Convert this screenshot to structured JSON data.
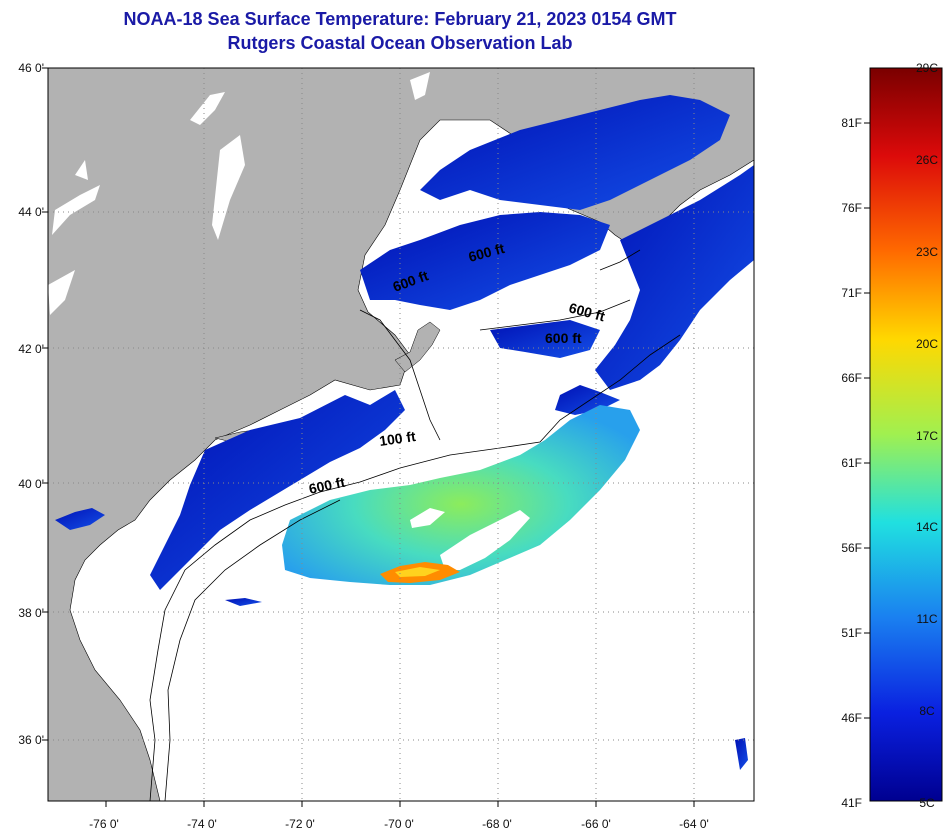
{
  "title": "NOAA-18 Sea Surface Temperature:  February 21, 2023 0154 GMT",
  "subtitle": "Rutgers Coastal Ocean Observation Lab",
  "latitude_labels": [
    "46 0'",
    "44 0'",
    "42 0'",
    "40 0'",
    "38 0'",
    "36 0'"
  ],
  "longitude_labels": [
    "-76 0'",
    "-74 0'",
    "-72 0'",
    "-70 0'",
    "-68 0'",
    "-66 0'",
    "-64 0'"
  ],
  "depth_contour_labels": [
    "600 ft",
    "600 ft",
    "600 ft",
    "600 ft",
    "100 ft",
    "600 ft"
  ],
  "colorbar": {
    "fahrenheit_labels": [
      "81F",
      "76F",
      "71F",
      "66F",
      "61F",
      "56F",
      "51F",
      "46F",
      "41F"
    ],
    "celsius_labels": [
      "29C",
      "26C",
      "23C",
      "20C",
      "17C",
      "14C",
      "11C",
      "8C",
      "5C"
    ]
  },
  "colors": {
    "title": "#1a1aa6",
    "land": "#b2b2b2",
    "cloud": "#ffffff",
    "cold_water": "#0a1ec8",
    "warm_water": "#3cd8c8",
    "hot_spot": "#ff8c00"
  }
}
